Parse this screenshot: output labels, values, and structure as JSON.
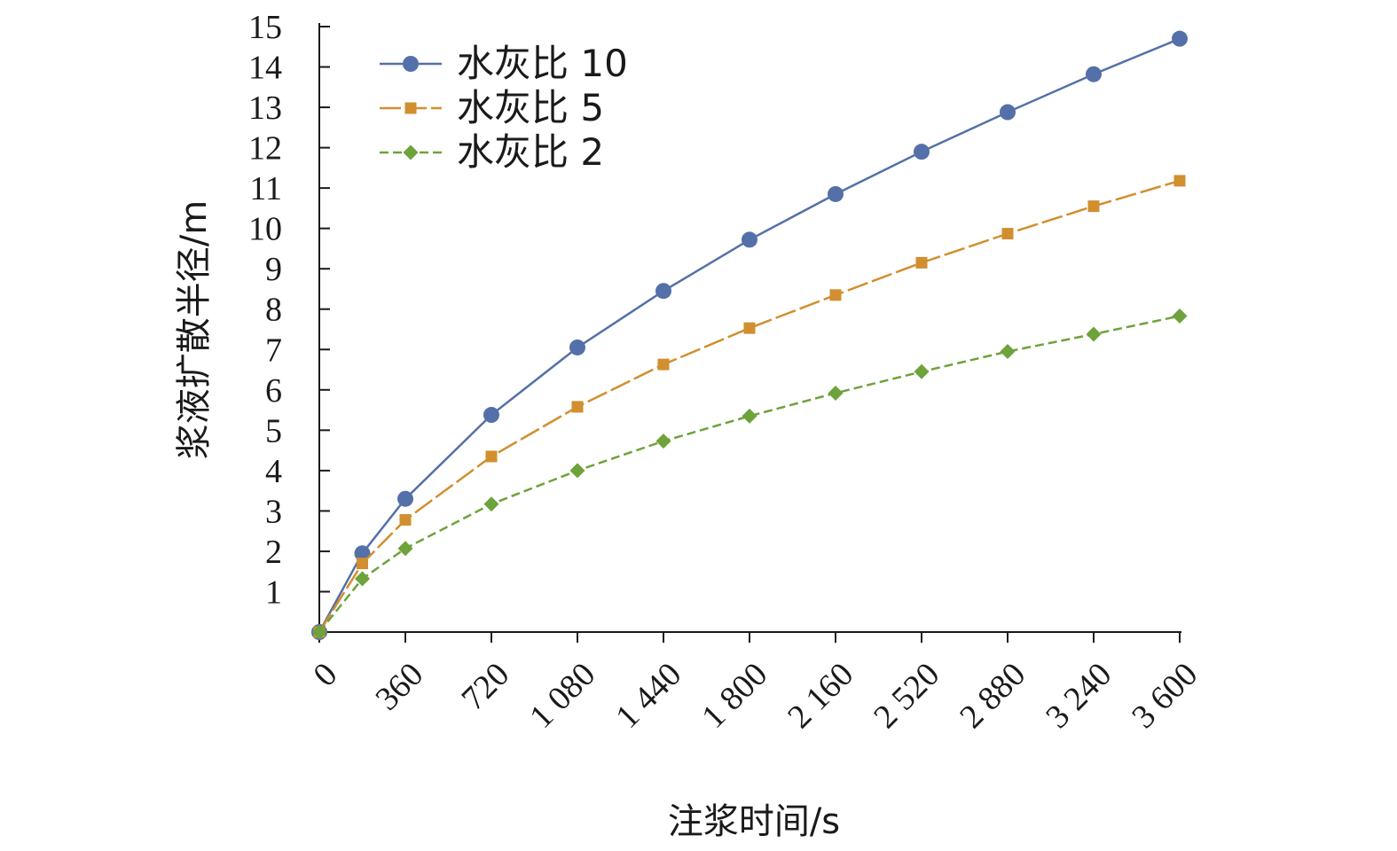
{
  "chart_data": {
    "type": "line",
    "xlabel": "注浆时间/s",
    "ylabel": "浆液扩散半径/m",
    "xlim": [
      0,
      3600
    ],
    "ylim": [
      0,
      15
    ],
    "x_ticks": [
      0,
      360,
      720,
      1080,
      1440,
      1800,
      2160,
      2520,
      2880,
      3240,
      3600
    ],
    "x_tick_labels": [
      "0",
      "360",
      "720",
      "1 080",
      "1 440",
      "1 800",
      "2 160",
      "2 520",
      "2 880",
      "3 240",
      "3 600"
    ],
    "y_ticks": [
      1,
      2,
      3,
      4,
      5,
      6,
      7,
      8,
      9,
      10,
      11,
      12,
      13,
      14,
      15
    ],
    "y_tick_labels": [
      "1",
      "2",
      "3",
      "4",
      "5",
      "6",
      "7",
      "8",
      "9",
      "10",
      "11",
      "12",
      "13",
      "14",
      "15"
    ],
    "x": [
      0,
      180,
      360,
      720,
      1080,
      1440,
      1800,
      2160,
      2520,
      2880,
      3240,
      3600
    ],
    "grid": false,
    "legend_position": "top-left",
    "series": [
      {
        "name": "水灰比 10",
        "values": [
          0,
          1.95,
          3.3,
          5.38,
          7.05,
          8.45,
          9.72,
          10.85,
          11.9,
          12.88,
          13.82,
          14.7
        ],
        "color": "#5470a8",
        "marker": "circle",
        "dash": "solid"
      },
      {
        "name": "水灰比 5",
        "values": [
          0,
          1.7,
          2.78,
          4.35,
          5.58,
          6.63,
          7.53,
          8.35,
          9.15,
          9.87,
          10.55,
          11.18
        ],
        "color": "#d18f2f",
        "marker": "square",
        "dash": "longdash"
      },
      {
        "name": "水灰比 2",
        "values": [
          0,
          1.32,
          2.07,
          3.17,
          4.0,
          4.73,
          5.35,
          5.92,
          6.45,
          6.95,
          7.38,
          7.83
        ],
        "color": "#6ea23a",
        "marker": "diamond",
        "dash": "shortdash"
      }
    ]
  }
}
